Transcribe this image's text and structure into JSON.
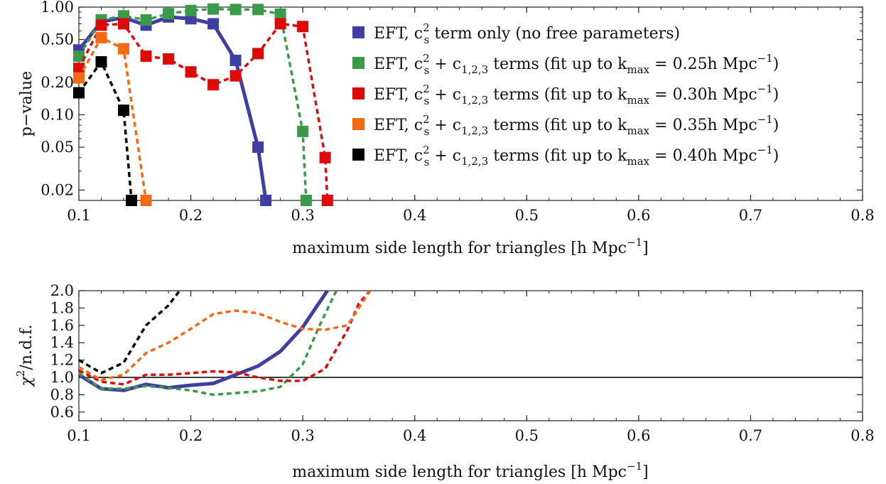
{
  "chart_data": [
    {
      "type": "line",
      "xlabel": "maximum side length for triangles [h Mpc⁻¹]",
      "ylabel": "p−value",
      "xlim": [
        0.1,
        0.8
      ],
      "ylim": [
        0.016,
        1.0
      ],
      "yscale": "log",
      "grid": false,
      "legend": "top-right",
      "xticks": [
        "0.1",
        "0.2",
        "0.3",
        "0.4",
        "0.5",
        "0.6",
        "0.7",
        "0.8"
      ],
      "yticks": [
        {
          "v": 1.0,
          "label": "1.00"
        },
        {
          "v": 0.5,
          "label": "0.50"
        },
        {
          "v": 0.2,
          "label": "0.20"
        },
        {
          "v": 0.1,
          "label": "0.10"
        },
        {
          "v": 0.05,
          "label": "0.05"
        },
        {
          "v": 0.02,
          "label": "0.02"
        }
      ],
      "series": [
        {
          "id": "blue",
          "legend": {
            "pre": "EFT, c",
            "sup": "2",
            "sub": "s",
            "post": " term only (no free parameters)"
          },
          "color": "#3f3fa3",
          "dash": false,
          "width": 5,
          "x": [
            0.1,
            0.12,
            0.14,
            0.16,
            0.18,
            0.2,
            0.22,
            0.24,
            0.26,
            0.267
          ],
          "y": [
            0.4,
            0.73,
            0.8,
            0.68,
            0.81,
            0.78,
            0.7,
            0.32,
            0.05,
            0.016
          ]
        },
        {
          "id": "green",
          "legend": {
            "pre": "EFT, c",
            "sup": "2",
            "sub": "s",
            "post": " + c",
            "sub2": "1,2,3",
            "post2": " terms (fit up to k",
            "sub3": "max",
            "post3": " = 0.25h Mpc",
            "sup3": "−1",
            "post4": ")"
          },
          "color": "#3a9a4a",
          "dash": true,
          "width": 3.5,
          "x": [
            0.1,
            0.12,
            0.14,
            0.16,
            0.18,
            0.2,
            0.22,
            0.24,
            0.26,
            0.28,
            0.3,
            0.303
          ],
          "y": [
            0.35,
            0.76,
            0.83,
            0.76,
            0.87,
            0.93,
            0.96,
            0.95,
            0.95,
            0.86,
            0.07,
            0.016
          ]
        },
        {
          "id": "red",
          "legend": {
            "pre": "EFT, c",
            "sup": "2",
            "sub": "s",
            "post": " + c",
            "sub2": "1,2,3",
            "post2": " terms (fit up to k",
            "sub3": "max",
            "post3": " = 0.30h Mpc",
            "sup3": "−1",
            "post4": ")"
          },
          "color": "#dd0a0a",
          "dash": true,
          "width": 3.5,
          "x": [
            0.1,
            0.12,
            0.14,
            0.16,
            0.18,
            0.2,
            0.22,
            0.24,
            0.26,
            0.28,
            0.3,
            0.32,
            0.322
          ],
          "y": [
            0.27,
            0.68,
            0.7,
            0.35,
            0.33,
            0.25,
            0.19,
            0.23,
            0.37,
            0.7,
            0.66,
            0.04,
            0.016
          ]
        },
        {
          "id": "orange",
          "legend": {
            "pre": "EFT, c",
            "sup": "2",
            "sub": "s",
            "post": " + c",
            "sub2": "1,2,3",
            "post2": " terms (fit up to k",
            "sub3": "max",
            "post3": " = 0.35h Mpc",
            "sup3": "−1",
            "post4": ")"
          },
          "color": "#f26a14",
          "dash": true,
          "width": 3.5,
          "x": [
            0.1,
            0.12,
            0.14,
            0.16
          ],
          "y": [
            0.22,
            0.52,
            0.41,
            0.016
          ]
        },
        {
          "id": "black",
          "legend": {
            "pre": "EFT, c",
            "sup": "2",
            "sub": "s",
            "post": " + c",
            "sub2": "1,2,3",
            "post2": " terms (fit up to k",
            "sub3": "max",
            "post3": " = 0.40h Mpc",
            "sup3": "−1",
            "post4": ")"
          },
          "color": "#000000",
          "dash": true,
          "width": 3.5,
          "x": [
            0.1,
            0.12,
            0.14,
            0.147
          ],
          "y": [
            0.16,
            0.31,
            0.11,
            0.016
          ]
        }
      ]
    },
    {
      "type": "line",
      "xlabel": "maximum side length for triangles [h Mpc⁻¹]",
      "ylabel": {
        "pre": "χ",
        "sup": "2",
        "post": "/n.d.f."
      },
      "xlim": [
        0.1,
        0.8
      ],
      "ylim": [
        0.5,
        2.0
      ],
      "grid": false,
      "reference_line": 1.0,
      "xticks": [
        "0.1",
        "0.2",
        "0.3",
        "0.4",
        "0.5",
        "0.6",
        "0.7",
        "0.8"
      ],
      "yticks": [
        {
          "v": 2.0,
          "label": "2.0"
        },
        {
          "v": 1.8,
          "label": "1.8"
        },
        {
          "v": 1.6,
          "label": "1.6"
        },
        {
          "v": 1.4,
          "label": "1.4"
        },
        {
          "v": 1.2,
          "label": "1.2"
        },
        {
          "v": 1.0,
          "label": "1.0"
        },
        {
          "v": 0.8,
          "label": "0.8"
        },
        {
          "v": 0.6,
          "label": "0.6"
        }
      ],
      "series": [
        {
          "id": "blue",
          "color": "#3f3fa3",
          "dash": false,
          "width": 5,
          "x": [
            0.1,
            0.12,
            0.14,
            0.16,
            0.18,
            0.2,
            0.22,
            0.24,
            0.26,
            0.28,
            0.3,
            0.322
          ],
          "y": [
            1.03,
            0.87,
            0.85,
            0.92,
            0.88,
            0.91,
            0.93,
            1.03,
            1.13,
            1.3,
            1.58,
            2.0
          ]
        },
        {
          "id": "green",
          "color": "#3a9a4a",
          "dash": true,
          "width": 3.5,
          "x": [
            0.1,
            0.12,
            0.14,
            0.16,
            0.18,
            0.2,
            0.22,
            0.24,
            0.26,
            0.28,
            0.3,
            0.315,
            0.33
          ],
          "y": [
            1.05,
            0.87,
            0.87,
            0.9,
            0.88,
            0.85,
            0.8,
            0.82,
            0.84,
            0.89,
            1.15,
            1.6,
            2.0
          ]
        },
        {
          "id": "red",
          "color": "#dd0a0a",
          "dash": true,
          "width": 3.5,
          "x": [
            0.1,
            0.12,
            0.14,
            0.16,
            0.18,
            0.2,
            0.22,
            0.24,
            0.26,
            0.28,
            0.3,
            0.32,
            0.34,
            0.35,
            0.36
          ],
          "y": [
            1.08,
            0.95,
            0.92,
            1.03,
            1.03,
            1.05,
            1.07,
            1.06,
            1.0,
            0.96,
            0.96,
            1.1,
            1.55,
            1.85,
            2.0
          ]
        },
        {
          "id": "orange",
          "color": "#f26a14",
          "dash": true,
          "width": 3.5,
          "x": [
            0.1,
            0.12,
            0.14,
            0.16,
            0.18,
            0.2,
            0.22,
            0.24,
            0.26,
            0.28,
            0.3,
            0.32,
            0.34,
            0.36
          ],
          "y": [
            1.12,
            0.97,
            1.03,
            1.28,
            1.4,
            1.56,
            1.73,
            1.77,
            1.74,
            1.64,
            1.56,
            1.55,
            1.6,
            2.0
          ]
        },
        {
          "id": "black",
          "color": "#000000",
          "dash": true,
          "width": 3.5,
          "x": [
            0.1,
            0.12,
            0.14,
            0.16,
            0.18,
            0.19
          ],
          "y": [
            1.2,
            1.05,
            1.17,
            1.6,
            1.83,
            2.0
          ]
        }
      ]
    }
  ]
}
